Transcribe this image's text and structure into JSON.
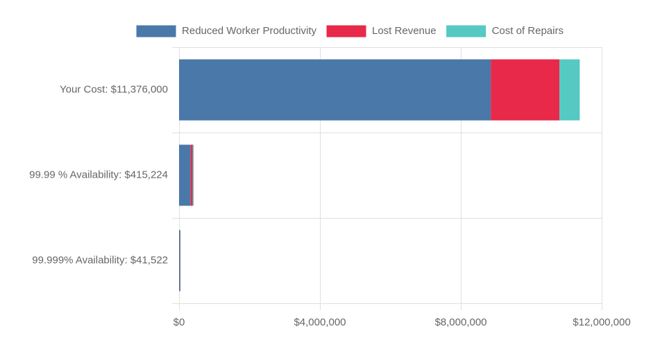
{
  "chart_data": {
    "type": "bar",
    "orientation": "horizontal",
    "stacked": true,
    "categories": [
      "Your Cost: $11,376,000",
      "99.99 % Availability: $415,224",
      "99.999% Availability: $41,522"
    ],
    "series": [
      {
        "name": "Reduced Worker Productivity",
        "color": "#4a78a8",
        "values": [
          8850000,
          330000,
          33000
        ]
      },
      {
        "name": "Lost Revenue",
        "color": "#e8294a",
        "values": [
          1950000,
          60000,
          6000
        ]
      },
      {
        "name": "Cost of Repairs",
        "color": "#55c9c2",
        "values": [
          576000,
          25224,
          2522
        ]
      }
    ],
    "x_ticks": [
      0,
      4000000,
      8000000,
      12000000
    ],
    "x_tick_labels": [
      "$0",
      "$4,000,000",
      "$8,000,000",
      "$12,000,000"
    ],
    "xlim": [
      0,
      12000000
    ],
    "grid": true,
    "legend_position": "top"
  }
}
